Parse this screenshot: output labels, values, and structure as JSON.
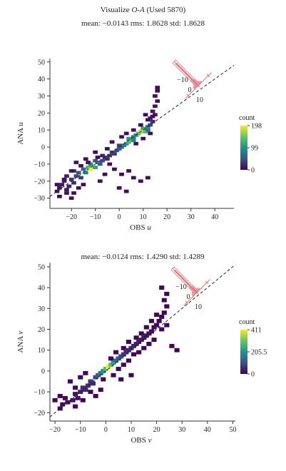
{
  "header": {
    "title_prefix": "Visualize ",
    "title_italic": "O-A",
    "title_suffix": " (Used 5870)",
    "stats_top": "mean: −0.0143 rms: 1.8628 std: 1.8628",
    "stats_bottom": "mean: −0.0124 rms: 1.4290 std: 1.4289"
  },
  "colors": {
    "cmap": [
      "#440154",
      "#3b528b",
      "#21918c",
      "#5ec962",
      "#fde725"
    ],
    "diagonal": "#222222",
    "inset": "#e8707a"
  },
  "chart_data": [
    {
      "type": "heatmap",
      "title": "mean: −0.0143 rms: 1.8628 std: 1.8628",
      "xlabel": "OBS",
      "xlabel_var": "u",
      "ylabel": "ANA",
      "ylabel_var": "u",
      "xlim": [
        -29,
        48
      ],
      "ylim": [
        -36,
        52
      ],
      "xticks": [
        -20,
        -10,
        0,
        10,
        20,
        30,
        40
      ],
      "yticks": [
        -30,
        -20,
        -10,
        0,
        10,
        20,
        30,
        40,
        50
      ],
      "colorbar": {
        "label": "count",
        "ticks": [
          "198",
          "99",
          "0"
        ],
        "max": 198
      },
      "reference_line": "y = x",
      "inset": {
        "type": "histogram of O-A",
        "tick_labels": [
          "−10",
          "0",
          "10"
        ]
      },
      "cells": [
        [
          -26,
          -26,
          10
        ],
        [
          -25,
          -24,
          12
        ],
        [
          -24,
          -22,
          16
        ],
        [
          -22,
          -25,
          14
        ],
        [
          -23,
          -20,
          22
        ],
        [
          -21,
          -23,
          18
        ],
        [
          -20,
          -19,
          30
        ],
        [
          -22,
          -17,
          20
        ],
        [
          -19,
          -21,
          26
        ],
        [
          -18,
          -17,
          44
        ],
        [
          -17,
          -15,
          52
        ],
        [
          -19,
          -14,
          24
        ],
        [
          -16,
          -18,
          34
        ],
        [
          -15,
          -13,
          70
        ],
        [
          -14,
          -15,
          80
        ],
        [
          -13,
          -12,
          120
        ],
        [
          -12,
          -13,
          198
        ],
        [
          -11,
          -11,
          160
        ],
        [
          -12,
          -10,
          96
        ],
        [
          -10,
          -12,
          110
        ],
        [
          -9,
          -9,
          80
        ],
        [
          -10,
          -8,
          48
        ],
        [
          -8,
          -10,
          60
        ],
        [
          -7,
          -8,
          44
        ],
        [
          -6,
          -6,
          36
        ],
        [
          -7,
          -5,
          20
        ],
        [
          -5,
          -7,
          26
        ],
        [
          -4,
          -5,
          30
        ],
        [
          -3,
          -3,
          40
        ],
        [
          -2,
          -4,
          34
        ],
        [
          -1,
          -2,
          44
        ],
        [
          0,
          -1,
          56
        ],
        [
          1,
          0,
          64
        ],
        [
          0,
          1,
          40
        ],
        [
          2,
          1,
          80
        ],
        [
          3,
          2,
          96
        ],
        [
          4,
          3,
          130
        ],
        [
          5,
          4,
          150
        ],
        [
          4,
          5,
          110
        ],
        [
          6,
          4,
          90
        ],
        [
          6,
          6,
          80
        ],
        [
          7,
          7,
          100
        ],
        [
          8,
          8,
          130
        ],
        [
          9,
          9,
          170
        ],
        [
          10,
          10,
          190
        ],
        [
          11,
          9,
          140
        ],
        [
          10,
          11,
          120
        ],
        [
          12,
          12,
          80
        ],
        [
          12,
          10,
          70
        ],
        [
          13,
          13,
          40
        ],
        [
          14,
          15,
          26
        ],
        [
          13,
          17,
          20
        ],
        [
          15,
          19,
          14
        ],
        [
          14,
          21,
          12
        ],
        [
          15,
          24,
          10
        ],
        [
          16,
          27,
          8
        ],
        [
          15,
          30,
          8
        ],
        [
          16,
          33,
          6
        ],
        [
          16,
          35,
          6
        ],
        [
          -20,
          -14,
          10
        ],
        [
          -18,
          -9,
          8
        ],
        [
          -25,
          -29,
          6
        ],
        [
          -22,
          -27,
          8
        ],
        [
          -20,
          -30,
          6
        ],
        [
          -17,
          -24,
          8
        ],
        [
          -15,
          -22,
          6
        ],
        [
          -14,
          -7,
          8
        ],
        [
          -10,
          -3,
          6
        ],
        [
          -5,
          -1,
          8
        ],
        [
          -3,
          3,
          6
        ],
        [
          1,
          6,
          8
        ],
        [
          3,
          8,
          6
        ],
        [
          6,
          10,
          8
        ],
        [
          9,
          13,
          6
        ],
        [
          12,
          16,
          8
        ],
        [
          14,
          18,
          6
        ],
        [
          11,
          19,
          6
        ],
        [
          -4,
          -10,
          8
        ],
        [
          -2,
          -13,
          6
        ],
        [
          1,
          -16,
          6
        ],
        [
          4,
          -14,
          6
        ],
        [
          6,
          -18,
          6
        ],
        [
          9,
          -20,
          6
        ],
        [
          12,
          -18,
          6
        ],
        [
          3,
          -26,
          6
        ],
        [
          0,
          -24,
          6
        ],
        [
          -8,
          -20,
          6
        ],
        [
          -6,
          -16,
          6
        ],
        [
          -19,
          -27,
          6
        ],
        [
          -23,
          -19,
          8
        ],
        [
          -26,
          -22,
          8
        ],
        [
          -16,
          -11,
          8
        ],
        [
          -13,
          -9,
          10
        ],
        [
          -9,
          -6,
          8
        ],
        [
          7,
          2,
          8
        ],
        [
          10,
          5,
          6
        ],
        [
          13,
          8,
          8
        ]
      ]
    },
    {
      "type": "heatmap",
      "title": "mean: −0.0124 rms: 1.4290 std: 1.4289",
      "xlabel": "OBS",
      "xlabel_var": "v",
      "ylabel": "ANA",
      "ylabel_var": "v",
      "xlim": [
        -22,
        51
      ],
      "ylim": [
        -24,
        52
      ],
      "xticks": [
        -20,
        -10,
        0,
        10,
        20,
        30,
        40,
        50
      ],
      "yticks": [
        -20,
        -10,
        0,
        10,
        20,
        30,
        40,
        50
      ],
      "colorbar": {
        "label": "count",
        "ticks": [
          "411",
          "205.5",
          "0"
        ],
        "max": 411
      },
      "reference_line": "y = x",
      "inset": {
        "type": "histogram of O-A",
        "tick_labels": [
          "−10",
          "0",
          "10"
        ]
      },
      "cells": [
        [
          -18,
          -18,
          10
        ],
        [
          -17,
          -16,
          14
        ],
        [
          -15,
          -15,
          18
        ],
        [
          -16,
          -13,
          12
        ],
        [
          -13,
          -14,
          20
        ],
        [
          -12,
          -11,
          26
        ],
        [
          -11,
          -13,
          22
        ],
        [
          -10,
          -10,
          40
        ],
        [
          -9,
          -8,
          52
        ],
        [
          -8,
          -9,
          44
        ],
        [
          -7,
          -7,
          60
        ],
        [
          -6,
          -5,
          70
        ],
        [
          -5,
          -6,
          56
        ],
        [
          -4,
          -3,
          90
        ],
        [
          -3,
          -2,
          120
        ],
        [
          -2,
          -1,
          160
        ],
        [
          -1,
          0,
          200
        ],
        [
          0,
          1,
          280
        ],
        [
          1,
          2,
          411
        ],
        [
          2,
          3,
          300
        ],
        [
          3,
          4,
          220
        ],
        [
          4,
          5,
          150
        ],
        [
          5,
          6,
          110
        ],
        [
          6,
          7,
          90
        ],
        [
          7,
          8,
          70
        ],
        [
          8,
          9,
          60
        ],
        [
          9,
          10,
          52
        ],
        [
          10,
          11,
          48
        ],
        [
          11,
          12,
          40
        ],
        [
          12,
          13,
          34
        ],
        [
          13,
          14,
          30
        ],
        [
          14,
          15,
          26
        ],
        [
          15,
          16,
          24
        ],
        [
          16,
          17,
          20
        ],
        [
          17,
          18,
          18
        ],
        [
          18,
          19,
          16
        ],
        [
          19,
          21,
          14
        ],
        [
          20,
          22,
          12
        ],
        [
          21,
          24,
          10
        ],
        [
          22,
          26,
          8
        ],
        [
          23,
          28,
          8
        ],
        [
          24,
          31,
          6
        ],
        [
          23,
          34,
          6
        ],
        [
          24,
          37,
          6
        ],
        [
          22,
          40,
          6
        ],
        [
          -14,
          -5,
          8
        ],
        [
          -12,
          -8,
          8
        ],
        [
          -20,
          -14,
          6
        ],
        [
          -18,
          -12,
          6
        ],
        [
          -10,
          -3,
          8
        ],
        [
          -8,
          -1,
          6
        ],
        [
          -6,
          -10,
          8
        ],
        [
          -4,
          -12,
          6
        ],
        [
          -2,
          -9,
          6
        ],
        [
          -1,
          -4,
          8
        ],
        [
          3,
          -2,
          8
        ],
        [
          5,
          1,
          6
        ],
        [
          7,
          3,
          8
        ],
        [
          9,
          5,
          8
        ],
        [
          11,
          8,
          6
        ],
        [
          13,
          9,
          8
        ],
        [
          15,
          11,
          6
        ],
        [
          17,
          13,
          8
        ],
        [
          19,
          15,
          6
        ],
        [
          12,
          16,
          8
        ],
        [
          14,
          18,
          6
        ],
        [
          16,
          21,
          8
        ],
        [
          18,
          24,
          6
        ],
        [
          20,
          27,
          6
        ],
        [
          7,
          11,
          6
        ],
        [
          9,
          14,
          6
        ],
        [
          4,
          9,
          6
        ],
        [
          2,
          6,
          8
        ],
        [
          -12,
          -17,
          8
        ],
        [
          -9,
          -14,
          6
        ],
        [
          26,
          12,
          6
        ],
        [
          28,
          10,
          6
        ],
        [
          10,
          -2,
          6
        ],
        [
          6,
          -4,
          6
        ],
        [
          22,
          20,
          8
        ],
        [
          24,
          22,
          6
        ]
      ]
    }
  ]
}
